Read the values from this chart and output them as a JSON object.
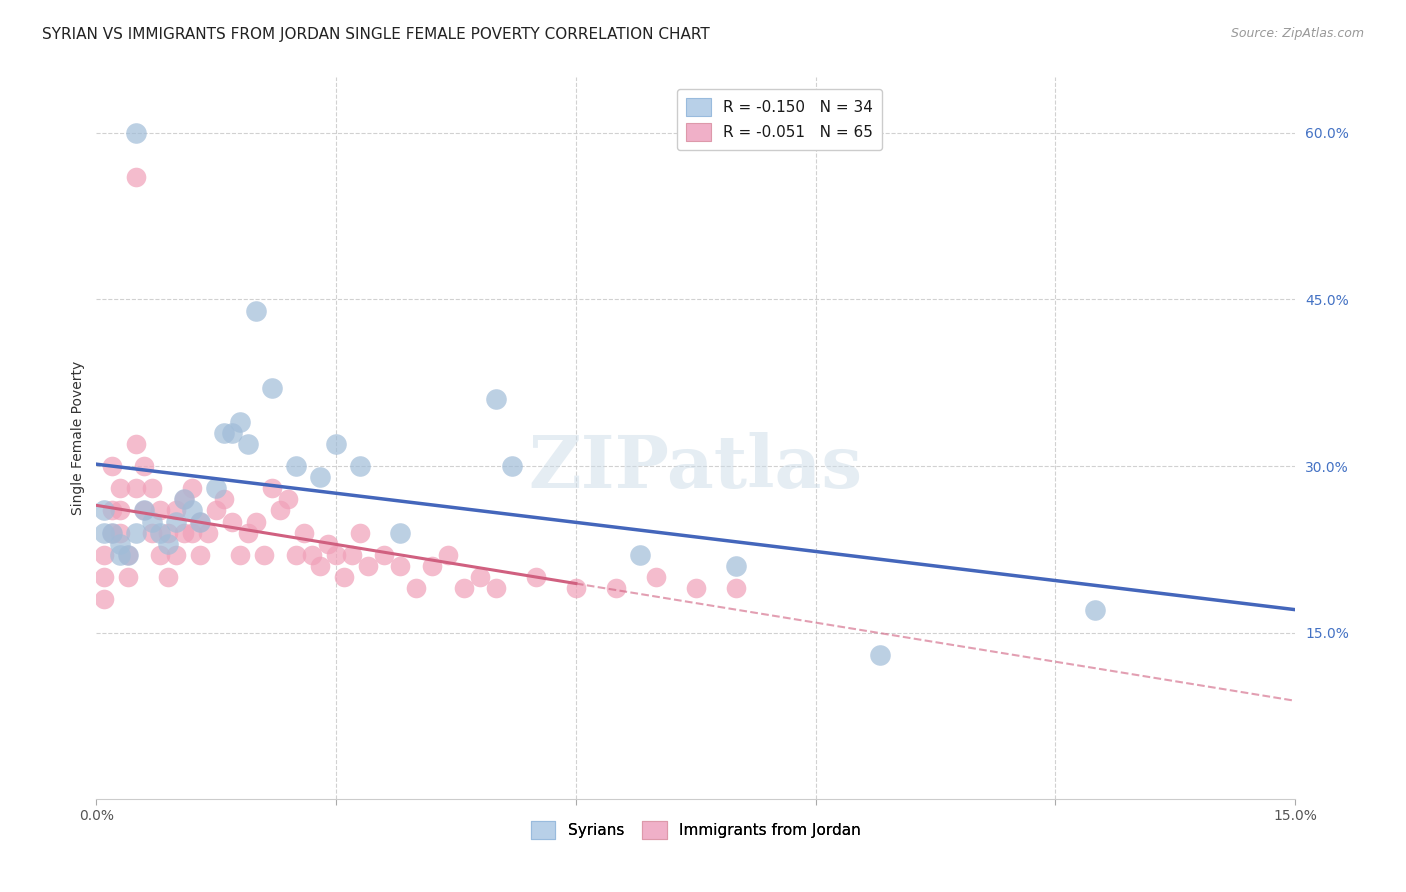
{
  "title": "SYRIAN VS IMMIGRANTS FROM JORDAN SINGLE FEMALE POVERTY CORRELATION CHART",
  "source": "Source: ZipAtlas.com",
  "ylabel": "Single Female Poverty",
  "yticks_labels": [
    "60.0%",
    "45.0%",
    "30.0%",
    "15.0%"
  ],
  "ytick_vals": [
    0.6,
    0.45,
    0.3,
    0.15
  ],
  "xlim": [
    0.0,
    0.15
  ],
  "ylim": [
    0.0,
    0.65
  ],
  "bottom_legend": [
    "Syrians",
    "Immigrants from Jordan"
  ],
  "blue_color": "#a0bcd8",
  "pink_color": "#f0a0b8",
  "blue_line_color": "#4466bb",
  "pink_line_color": "#d06080",
  "grid_color": "#cccccc",
  "background_color": "#ffffff",
  "title_fontsize": 11,
  "axis_label_fontsize": 10,
  "tick_fontsize": 10,
  "source_fontsize": 9,
  "legend_fontsize": 11,
  "watermark_fontsize": 52,
  "syrians_x": [
    0.001,
    0.001,
    0.002,
    0.003,
    0.003,
    0.004,
    0.005,
    0.005,
    0.006,
    0.007,
    0.008,
    0.009,
    0.01,
    0.011,
    0.012,
    0.013,
    0.015,
    0.016,
    0.017,
    0.018,
    0.019,
    0.02,
    0.022,
    0.025,
    0.028,
    0.03,
    0.033,
    0.038,
    0.05,
    0.052,
    0.068,
    0.08,
    0.098,
    0.125
  ],
  "syrians_y": [
    0.26,
    0.24,
    0.24,
    0.23,
    0.22,
    0.22,
    0.6,
    0.24,
    0.26,
    0.25,
    0.24,
    0.23,
    0.25,
    0.27,
    0.26,
    0.25,
    0.28,
    0.33,
    0.33,
    0.34,
    0.32,
    0.44,
    0.37,
    0.3,
    0.29,
    0.32,
    0.3,
    0.24,
    0.36,
    0.3,
    0.22,
    0.21,
    0.13,
    0.17
  ],
  "jordan_x": [
    0.001,
    0.001,
    0.001,
    0.002,
    0.002,
    0.002,
    0.003,
    0.003,
    0.003,
    0.004,
    0.004,
    0.005,
    0.005,
    0.005,
    0.006,
    0.006,
    0.007,
    0.007,
    0.008,
    0.008,
    0.009,
    0.009,
    0.01,
    0.01,
    0.011,
    0.011,
    0.012,
    0.012,
    0.013,
    0.013,
    0.014,
    0.015,
    0.016,
    0.017,
    0.018,
    0.019,
    0.02,
    0.021,
    0.022,
    0.023,
    0.024,
    0.025,
    0.026,
    0.027,
    0.028,
    0.029,
    0.03,
    0.031,
    0.032,
    0.033,
    0.034,
    0.036,
    0.038,
    0.04,
    0.042,
    0.044,
    0.046,
    0.048,
    0.05,
    0.055,
    0.06,
    0.065,
    0.07,
    0.075,
    0.08
  ],
  "jordan_y": [
    0.22,
    0.2,
    0.18,
    0.3,
    0.26,
    0.24,
    0.28,
    0.26,
    0.24,
    0.22,
    0.2,
    0.56,
    0.32,
    0.28,
    0.3,
    0.26,
    0.28,
    0.24,
    0.26,
    0.22,
    0.24,
    0.2,
    0.26,
    0.22,
    0.27,
    0.24,
    0.28,
    0.24,
    0.25,
    0.22,
    0.24,
    0.26,
    0.27,
    0.25,
    0.22,
    0.24,
    0.25,
    0.22,
    0.28,
    0.26,
    0.27,
    0.22,
    0.24,
    0.22,
    0.21,
    0.23,
    0.22,
    0.2,
    0.22,
    0.24,
    0.21,
    0.22,
    0.21,
    0.19,
    0.21,
    0.22,
    0.19,
    0.2,
    0.19,
    0.2,
    0.19,
    0.19,
    0.2,
    0.19,
    0.19
  ]
}
